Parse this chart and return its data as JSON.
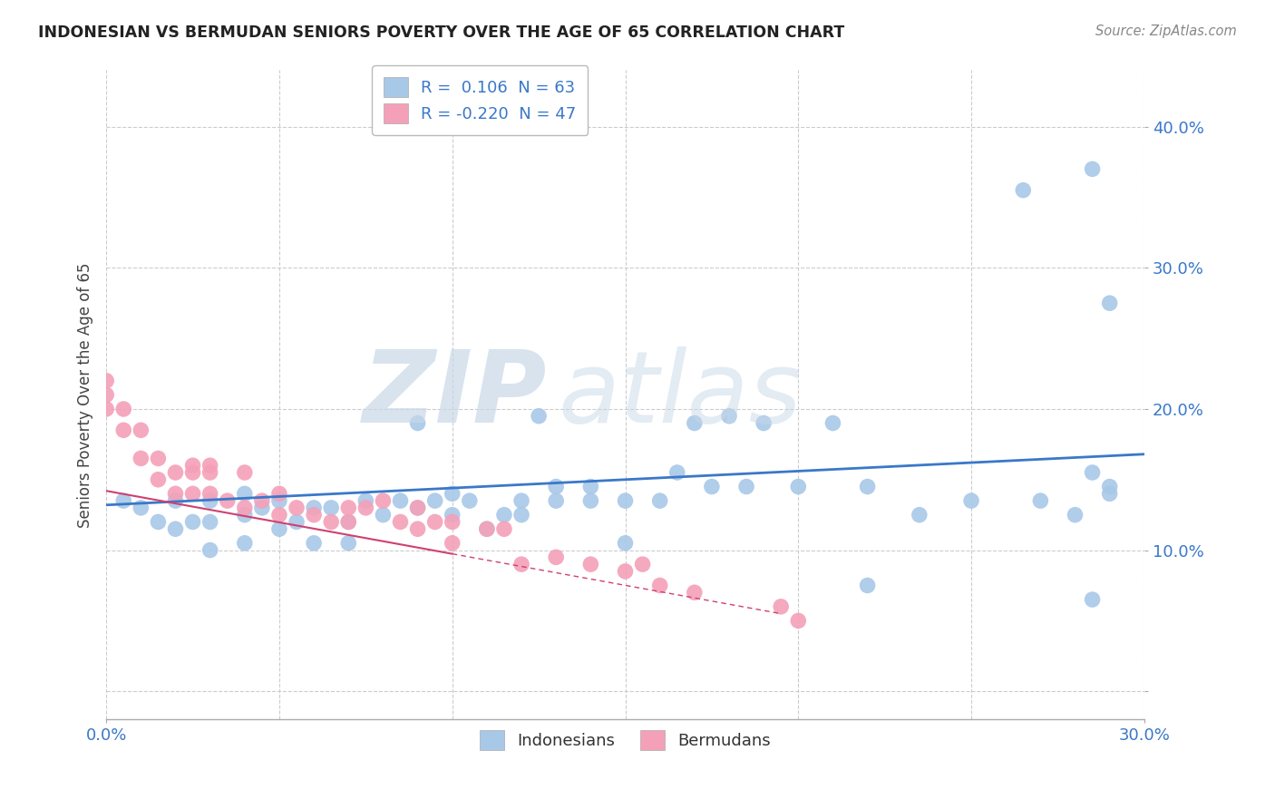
{
  "title": "INDONESIAN VS BERMUDAN SENIORS POVERTY OVER THE AGE OF 65 CORRELATION CHART",
  "source": "Source: ZipAtlas.com",
  "ylabel": "Seniors Poverty Over the Age of 65",
  "xlim": [
    0.0,
    0.3
  ],
  "ylim": [
    -0.02,
    0.44
  ],
  "yticks": [
    0.0,
    0.1,
    0.2,
    0.3,
    0.4
  ],
  "ytick_labels": [
    "",
    "10.0%",
    "20.0%",
    "30.0%",
    "40.0%"
  ],
  "xtick_labels": [
    "0.0%",
    "30.0%"
  ],
  "indonesian_color": "#a8c8e8",
  "bermudan_color": "#f4a0b8",
  "trend_indonesian_color": "#3a78c9",
  "trend_bermudan_color": "#d04070",
  "indonesian_x": [
    0.005,
    0.01,
    0.015,
    0.02,
    0.02,
    0.025,
    0.03,
    0.03,
    0.03,
    0.04,
    0.04,
    0.04,
    0.045,
    0.05,
    0.05,
    0.055,
    0.06,
    0.06,
    0.065,
    0.07,
    0.07,
    0.075,
    0.08,
    0.085,
    0.09,
    0.09,
    0.095,
    0.1,
    0.1,
    0.105,
    0.11,
    0.115,
    0.12,
    0.12,
    0.125,
    0.13,
    0.13,
    0.14,
    0.14,
    0.15,
    0.15,
    0.16,
    0.165,
    0.17,
    0.175,
    0.18,
    0.185,
    0.19,
    0.2,
    0.21,
    0.22,
    0.235,
    0.25,
    0.265,
    0.27,
    0.28,
    0.29,
    0.29,
    0.29,
    0.22,
    0.285,
    0.285,
    0.285
  ],
  "indonesian_y": [
    0.135,
    0.13,
    0.12,
    0.115,
    0.135,
    0.12,
    0.1,
    0.12,
    0.135,
    0.105,
    0.125,
    0.14,
    0.13,
    0.115,
    0.135,
    0.12,
    0.105,
    0.13,
    0.13,
    0.105,
    0.12,
    0.135,
    0.125,
    0.135,
    0.19,
    0.13,
    0.135,
    0.125,
    0.14,
    0.135,
    0.115,
    0.125,
    0.135,
    0.125,
    0.195,
    0.135,
    0.145,
    0.135,
    0.145,
    0.105,
    0.135,
    0.135,
    0.155,
    0.19,
    0.145,
    0.195,
    0.145,
    0.19,
    0.145,
    0.19,
    0.145,
    0.125,
    0.135,
    0.355,
    0.135,
    0.125,
    0.14,
    0.145,
    0.275,
    0.075,
    0.065,
    0.155,
    0.37
  ],
  "bermudan_x": [
    0.0,
    0.0,
    0.0,
    0.005,
    0.005,
    0.01,
    0.01,
    0.015,
    0.015,
    0.02,
    0.02,
    0.025,
    0.025,
    0.025,
    0.03,
    0.03,
    0.03,
    0.035,
    0.04,
    0.04,
    0.045,
    0.05,
    0.05,
    0.055,
    0.06,
    0.065,
    0.07,
    0.07,
    0.075,
    0.08,
    0.085,
    0.09,
    0.09,
    0.095,
    0.1,
    0.1,
    0.11,
    0.115,
    0.12,
    0.13,
    0.14,
    0.15,
    0.155,
    0.16,
    0.17,
    0.195,
    0.2
  ],
  "bermudan_y": [
    0.22,
    0.21,
    0.2,
    0.2,
    0.185,
    0.185,
    0.165,
    0.165,
    0.15,
    0.155,
    0.14,
    0.16,
    0.155,
    0.14,
    0.155,
    0.14,
    0.16,
    0.135,
    0.13,
    0.155,
    0.135,
    0.125,
    0.14,
    0.13,
    0.125,
    0.12,
    0.12,
    0.13,
    0.13,
    0.135,
    0.12,
    0.115,
    0.13,
    0.12,
    0.105,
    0.12,
    0.115,
    0.115,
    0.09,
    0.095,
    0.09,
    0.085,
    0.09,
    0.075,
    0.07,
    0.06,
    0.05
  ],
  "trend_i_x0": 0.0,
  "trend_i_x1": 0.3,
  "trend_i_y0": 0.132,
  "trend_i_y1": 0.168,
  "trend_b_x0": 0.0,
  "trend_b_x1": 0.195,
  "trend_b_y0": 0.142,
  "trend_b_y1": 0.055
}
